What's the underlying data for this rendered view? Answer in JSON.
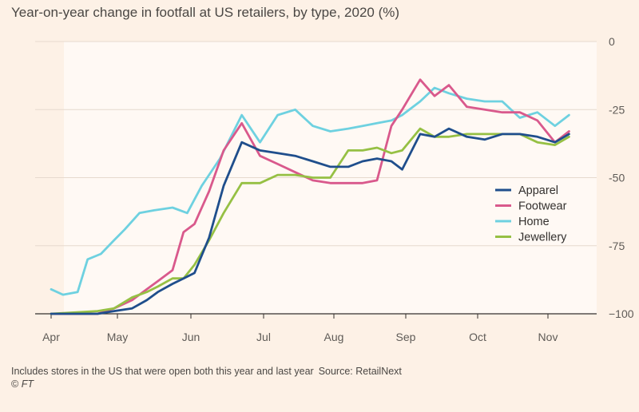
{
  "chart_data": {
    "type": "line",
    "title": "Year-on-year change in footfall at US retailers, by type, 2020 (%)",
    "xlabel": "",
    "ylabel": "",
    "ylim": [
      -100,
      0
    ],
    "yticks": [
      0,
      -25,
      -50,
      -75,
      -100
    ],
    "ytick_labels": [
      "0",
      "-25",
      "-50",
      "-75",
      "−100"
    ],
    "x_start": "Apr",
    "x_end": "Mid-Nov",
    "month_labels": [
      "Apr",
      "May",
      "Jun",
      "Jul",
      "Aug",
      "Sep",
      "Oct",
      "Nov"
    ],
    "grid": true,
    "legend_position": "right-middle",
    "series": [
      {
        "name": "Apparel",
        "color": "#1f4e8c",
        "x": [
          0.0,
          0.7,
          0.95,
          1.2,
          1.4,
          1.55,
          1.75,
          1.9,
          2.05,
          2.25,
          2.45,
          2.7,
          2.95,
          3.2,
          3.45,
          3.7,
          3.95,
          4.2,
          4.4,
          4.6,
          4.8,
          4.95,
          5.2,
          5.4,
          5.6,
          5.85,
          6.1,
          6.35,
          6.6,
          6.85,
          7.1,
          7.3
        ],
        "values": [
          -100,
          -100,
          -99,
          -98,
          -95,
          -92,
          -89,
          -87,
          -85,
          -72,
          -53,
          -37,
          -40,
          -41,
          -42,
          -44,
          -46,
          -46,
          -44,
          -43,
          -44,
          -47,
          -34,
          -35,
          -32,
          -35,
          -36,
          -34,
          -34,
          -35,
          -37,
          -34
        ]
      },
      {
        "name": "Footwear",
        "color": "#d9598c",
        "x": [
          0.0,
          0.7,
          0.95,
          1.2,
          1.4,
          1.55,
          1.75,
          1.9,
          2.05,
          2.25,
          2.45,
          2.7,
          2.95,
          3.2,
          3.45,
          3.7,
          3.95,
          4.2,
          4.4,
          4.6,
          4.8,
          4.95,
          5.2,
          5.4,
          5.6,
          5.85,
          6.1,
          6.35,
          6.6,
          6.85,
          7.1,
          7.3
        ],
        "values": [
          -100,
          -100,
          -98,
          -95,
          -91,
          -88,
          -84,
          -70,
          -67,
          -55,
          -40,
          -30,
          -42,
          -45,
          -48,
          -51,
          -52,
          -52,
          -52,
          -51,
          -31,
          -25,
          -14,
          -20,
          -16,
          -24,
          -25,
          -26,
          -26,
          -29,
          -37,
          -33
        ]
      },
      {
        "name": "Home",
        "color": "#6ed1e0",
        "x": [
          0.0,
          0.18,
          0.4,
          0.55,
          0.75,
          0.95,
          1.1,
          1.3,
          1.5,
          1.75,
          1.95,
          2.15,
          2.4,
          2.7,
          2.95,
          3.2,
          3.45,
          3.7,
          3.95,
          4.2,
          4.4,
          4.6,
          4.8,
          4.95,
          5.2,
          5.4,
          5.6,
          5.85,
          6.1,
          6.35,
          6.6,
          6.85,
          7.1,
          7.3
        ],
        "values": [
          -91,
          -93,
          -92,
          -80,
          -78,
          -73,
          -69,
          -63,
          -62,
          -61,
          -63,
          -53,
          -43,
          -27,
          -37,
          -27,
          -25,
          -31,
          -33,
          -32,
          -31,
          -30,
          -29,
          -27,
          -22,
          -17,
          -19,
          -21,
          -22,
          -22,
          -28,
          -26,
          -31,
          -27
        ]
      },
      {
        "name": "Jewellery",
        "color": "#96c044",
        "x": [
          0.0,
          0.7,
          0.95,
          1.2,
          1.4,
          1.55,
          1.75,
          1.9,
          2.05,
          2.25,
          2.45,
          2.7,
          2.95,
          3.2,
          3.45,
          3.7,
          3.95,
          4.2,
          4.4,
          4.6,
          4.8,
          4.95,
          5.2,
          5.4,
          5.6,
          5.85,
          6.1,
          6.35,
          6.6,
          6.85,
          7.1,
          7.3
        ],
        "values": [
          -100,
          -99,
          -98,
          -94,
          -92,
          -90,
          -87,
          -87,
          -82,
          -73,
          -63,
          -52,
          -52,
          -49,
          -49,
          -50,
          -50,
          -40,
          -40,
          -39,
          -41,
          -40,
          -32,
          -35,
          -35,
          -34,
          -34,
          -34,
          -34,
          -37,
          -38,
          -35
        ]
      }
    ]
  },
  "footnote": {
    "text": "Includes stores in the US that were open both this year and last year",
    "source": "Source: RetailNext"
  },
  "copyright": {
    "symbol": "©",
    "brand": "FT"
  }
}
